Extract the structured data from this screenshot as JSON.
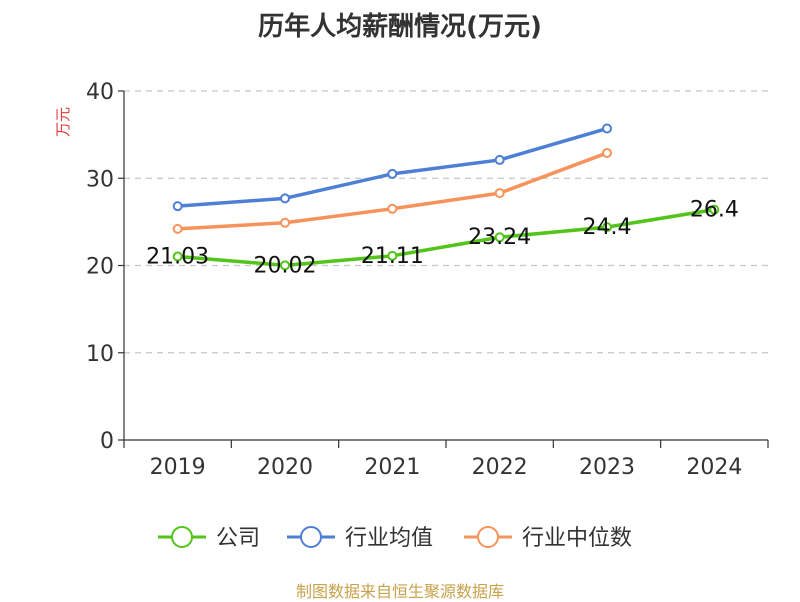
{
  "chart_data": {
    "type": "line",
    "title": "历年人均薪酬情况(万元)",
    "ylabel": "万元",
    "ylim": [
      0,
      40
    ],
    "yticks": [
      0,
      10,
      20,
      30,
      40
    ],
    "grid": true,
    "legend_position": "bottom",
    "categories": [
      "2019",
      "2020",
      "2021",
      "2022",
      "2023",
      "2024"
    ],
    "series": [
      {
        "name": "公司",
        "color": "#52c41a",
        "values": [
          21.03,
          20.02,
          21.11,
          23.24,
          24.4,
          26.4
        ],
        "labels": [
          "21.03",
          "20.02",
          "21.11",
          "23.24",
          "24.4",
          "26.4"
        ]
      },
      {
        "name": "行业均值",
        "color": "#4e7fd6",
        "values": [
          26.8,
          27.7,
          30.5,
          32.1,
          35.7,
          null
        ]
      },
      {
        "name": "行业中位数",
        "color": "#f7935a",
        "values": [
          24.2,
          24.9,
          26.5,
          28.3,
          32.9,
          null
        ]
      }
    ]
  },
  "source": "制图数据来自恒生聚源数据库"
}
